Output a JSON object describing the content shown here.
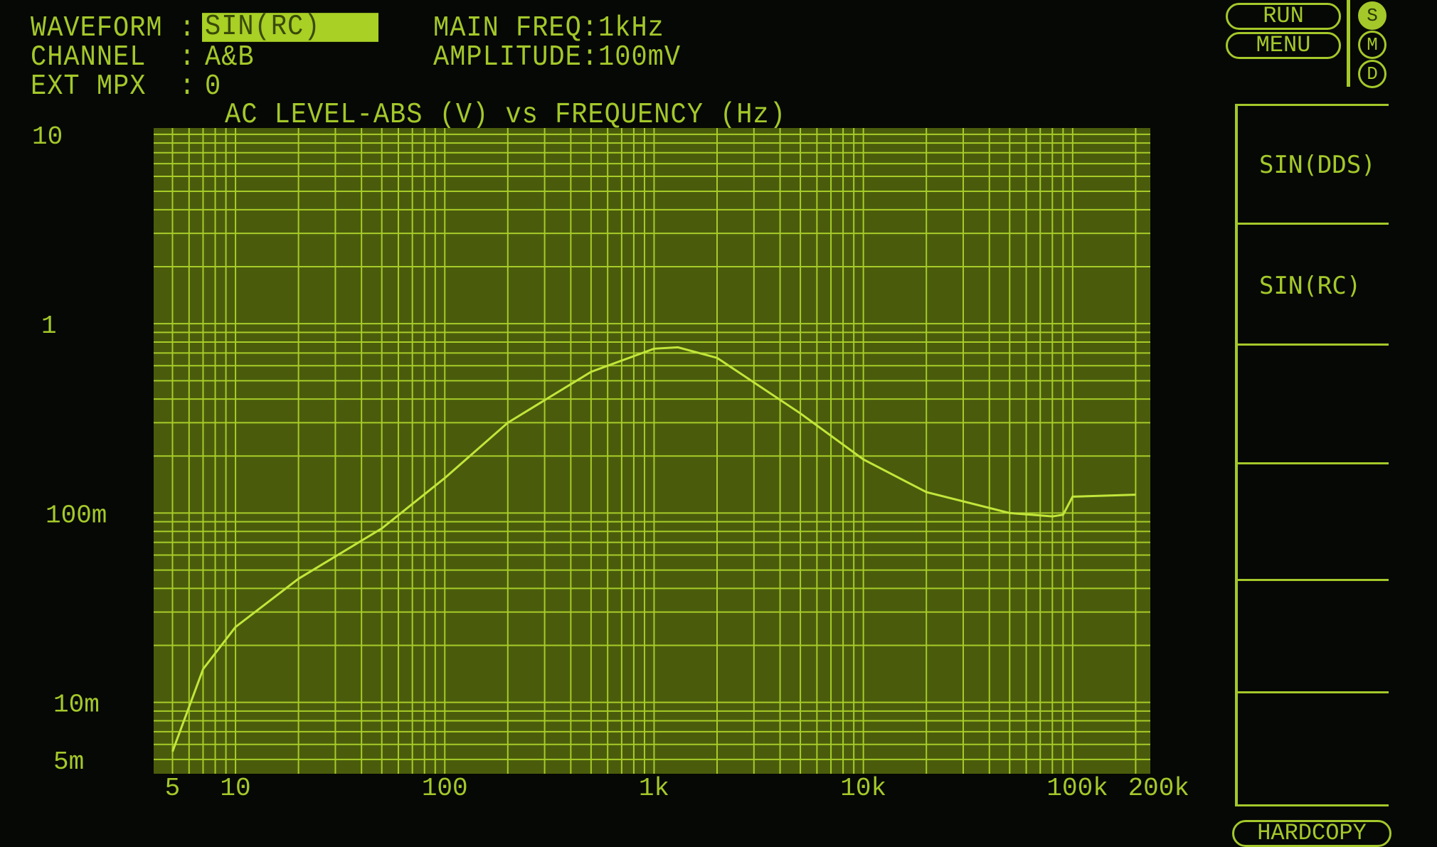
{
  "header": {
    "waveform_label": "WAVEFORM :",
    "waveform_value": "SIN(RC)",
    "channel_label": "CHANNEL  :",
    "channel_value": "A&B",
    "ext_mpx_label": "EXT MPX  :",
    "ext_mpx_value": "0",
    "main_freq": "MAIN FREQ:1kHz",
    "amplitude": "AMPLITUDE:100mV"
  },
  "controls": {
    "run": "RUN",
    "menu": "MENU",
    "modes": [
      "S",
      "M",
      "D"
    ],
    "active_mode": "S",
    "softkeys": [
      "SIN(DDS)",
      "SIN(RC)",
      "",
      "",
      "",
      ""
    ],
    "hardcopy": "HARDCOPY"
  },
  "colors": {
    "phosphor": "#a4c82a",
    "plot_bg": "#4a5c0c",
    "background": "#060805"
  },
  "chart_data": {
    "type": "line",
    "title": "AC LEVEL-ABS (V) vs FREQUENCY (Hz)",
    "x_scale": "log",
    "y_scale": "log",
    "xlim": [
      5,
      200000
    ],
    "ylim": [
      0.0042,
      10.8
    ],
    "x_ticks": [
      {
        "v": 5,
        "label": "5"
      },
      {
        "v": 10,
        "label": "10"
      },
      {
        "v": 100,
        "label": "100"
      },
      {
        "v": 1000,
        "label": "1k"
      },
      {
        "v": 10000,
        "label": "10k"
      },
      {
        "v": 100000,
        "label": "100k"
      },
      {
        "v": 200000,
        "label": "200k"
      }
    ],
    "y_ticks": [
      {
        "v": 10,
        "label": "10"
      },
      {
        "v": 1,
        "label": "1"
      },
      {
        "v": 0.1,
        "label": "100m"
      },
      {
        "v": 0.01,
        "label": "10m"
      },
      {
        "v": 0.005,
        "label": "5m"
      }
    ],
    "grid": true,
    "series": [
      {
        "x": [
          5,
          7,
          10,
          20,
          50,
          100,
          200,
          500,
          1000,
          1300,
          2000,
          5000,
          10000,
          20000,
          50000,
          80000,
          90000,
          100000,
          200000
        ],
        "y": [
          0.0055,
          0.015,
          0.025,
          0.045,
          0.083,
          0.153,
          0.3,
          0.557,
          0.738,
          0.75,
          0.66,
          0.336,
          0.192,
          0.129,
          0.1,
          0.096,
          0.098,
          0.122,
          0.125
        ]
      }
    ]
  }
}
